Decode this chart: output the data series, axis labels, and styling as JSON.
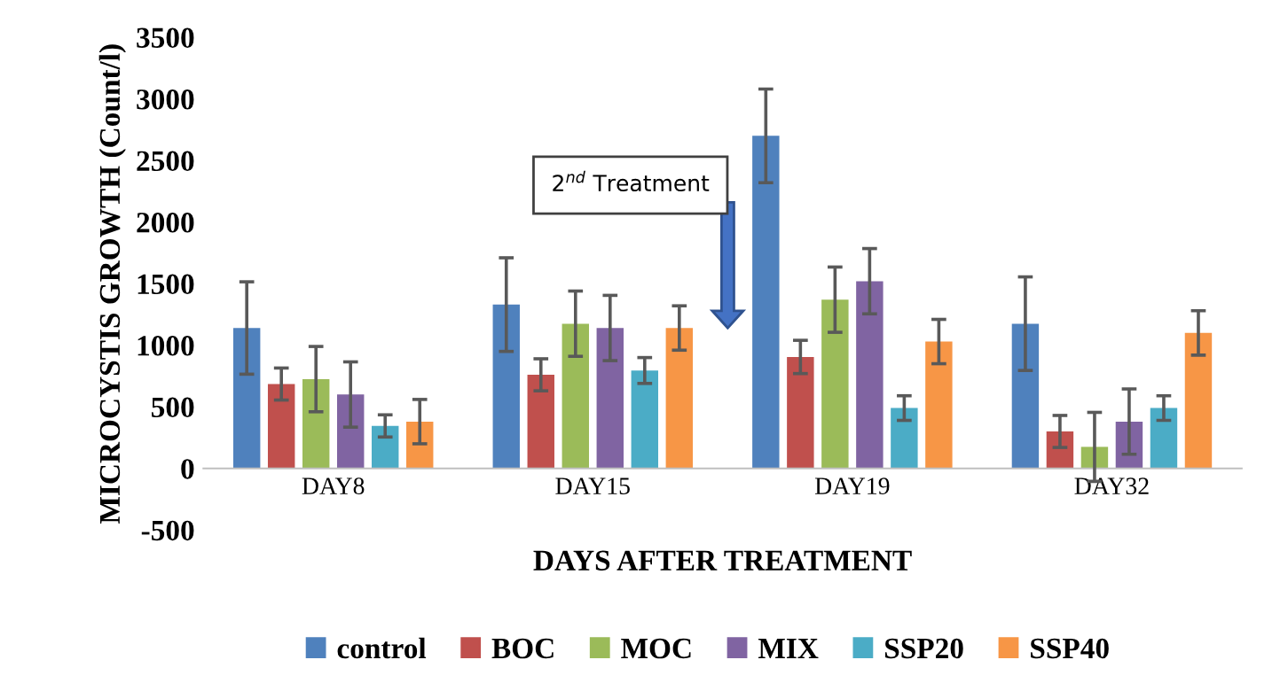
{
  "chart_data": {
    "type": "bar",
    "xlabel": "DAYS AFTER TREATMENT",
    "ylabel": "MICROCYSTIS GROWTH (Count/l)",
    "categories": [
      "DAY8",
      "DAY15",
      "DAY19",
      "DAY32"
    ],
    "series": [
      {
        "name": "control",
        "color": "#4f81bd",
        "values": [
          1140,
          1330,
          2700,
          1175
        ],
        "errors": [
          375,
          380,
          380,
          380
        ]
      },
      {
        "name": "BOC",
        "color": "#c0504d",
        "values": [
          685,
          760,
          905,
          300
        ],
        "errors": [
          130,
          130,
          135,
          130
        ]
      },
      {
        "name": "MOC",
        "color": "#9bbb59",
        "values": [
          725,
          1175,
          1370,
          175
        ],
        "errors": [
          265,
          265,
          265,
          280
        ]
      },
      {
        "name": "MIX",
        "color": "#8064a2",
        "values": [
          600,
          1140,
          1520,
          380
        ],
        "errors": [
          265,
          265,
          265,
          265
        ]
      },
      {
        "name": "SSP20",
        "color": "#4bacc6",
        "values": [
          345,
          795,
          490,
          490
        ],
        "errors": [
          90,
          105,
          100,
          100
        ]
      },
      {
        "name": "SSP40",
        "color": "#f79646",
        "values": [
          380,
          1140,
          1030,
          1100
        ],
        "errors": [
          180,
          180,
          180,
          180
        ]
      }
    ],
    "ylim": [
      -500,
      3500
    ],
    "yticks": [
      -500,
      0,
      500,
      1000,
      1500,
      2000,
      2500,
      3000,
      3500
    ],
    "annotations": [
      "2$^{nd}$ Treatment"
    ],
    "grid": false,
    "legend": "bottom"
  }
}
